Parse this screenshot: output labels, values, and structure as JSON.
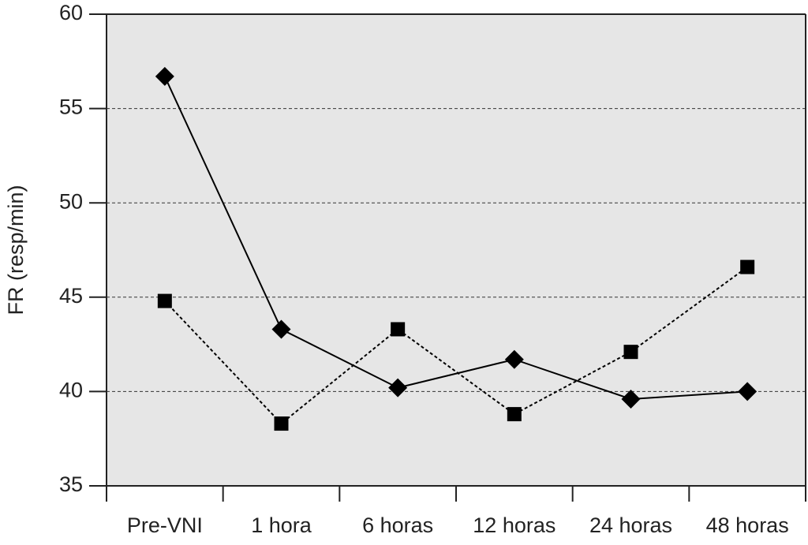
{
  "chart_data": {
    "type": "line",
    "ylabel": "FR (resp/min)",
    "categories": [
      "Pre-VNI",
      "1 hora",
      "6 horas",
      "12 horas",
      "24 horas",
      "48 horas"
    ],
    "series": [
      {
        "color": "#000000",
        "marker": "diamond",
        "dash": "solid",
        "values": [
          56.7,
          43.3,
          40.2,
          41.7,
          39.6,
          40.0
        ]
      },
      {
        "color": "#000000",
        "marker": "square",
        "dash": "dotted",
        "values": [
          44.8,
          38.3,
          43.3,
          38.8,
          42.1,
          46.6
        ]
      }
    ],
    "ylim": [
      35,
      60
    ],
    "yticks": [
      35,
      40,
      45,
      50,
      55,
      60
    ],
    "grid": true,
    "background": "#e6e6e6"
  }
}
